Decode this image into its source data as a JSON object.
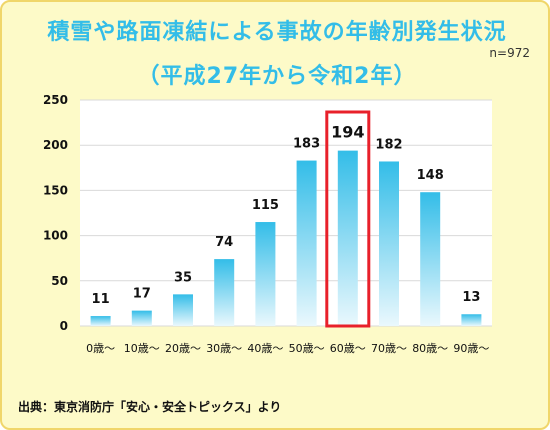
{
  "chart_data": {
    "type": "bar",
    "title": "積雪や路面凍結による事故の年齢別発生状況",
    "subtitle": "（平成27年から令和2年）",
    "note": "n=972",
    "source": "出典：東京消防庁「安心・安全トピックス」より",
    "categories": [
      "0歳〜",
      "10歳〜",
      "20歳〜",
      "30歳〜",
      "40歳〜",
      "50歳〜",
      "60歳〜",
      "70歳〜",
      "80歳〜",
      "90歳〜"
    ],
    "values": [
      11,
      17,
      35,
      74,
      115,
      183,
      194,
      182,
      148,
      13
    ],
    "data_labels": [
      "11",
      "17",
      "35",
      "74",
      "115",
      "183",
      "194",
      "182",
      "148",
      "13"
    ],
    "yticks": [
      "0",
      "50",
      "100",
      "150",
      "200",
      "250"
    ],
    "ylim": [
      0,
      250
    ],
    "grid": true,
    "highlight_category": "60歳〜",
    "colors": {
      "bar_top": "#33bde8",
      "bar_bottom": "#eaf8fd",
      "highlight_box": "#e8202a",
      "title": "#33bde8",
      "background": "#fdfac8",
      "border": "#f0d66a"
    }
  }
}
